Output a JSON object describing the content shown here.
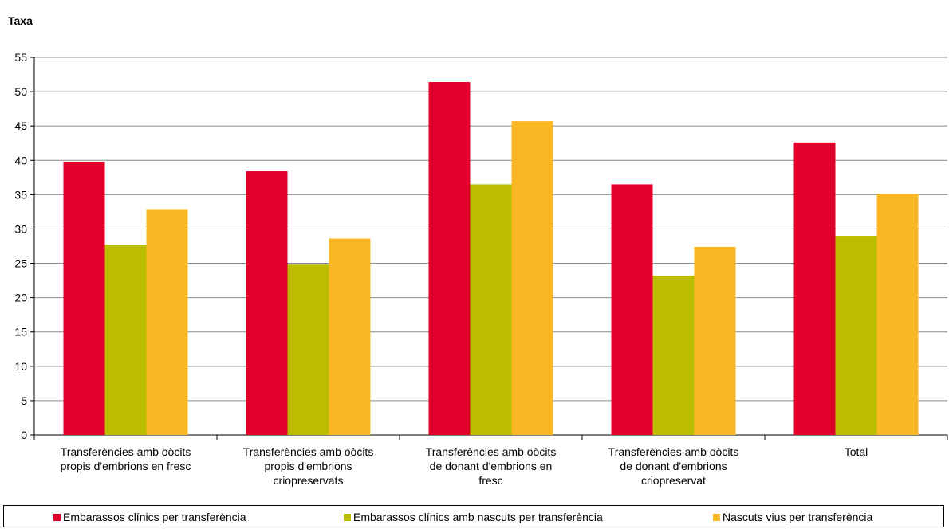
{
  "chart_data": {
    "type": "bar",
    "ylabel": "Taxa",
    "xlabel": "",
    "ylim": [
      0,
      55
    ],
    "yticks": [
      0,
      5,
      10,
      15,
      20,
      25,
      30,
      35,
      40,
      45,
      50,
      55
    ],
    "grid": "horizontal",
    "legend_position": "bottom",
    "categories": [
      [
        "Transferències amb oòcits",
        "propis d'embrions en fresc"
      ],
      [
        "Transferències amb oòcits",
        "propis d'embrions",
        "criopreservats"
      ],
      [
        "Transferències amb oòcits",
        "de donant d'embrions en",
        "fresc"
      ],
      [
        "Transferències amb oòcits",
        "de donant d'embrions",
        "criopreservat"
      ],
      [
        "Total"
      ]
    ],
    "series": [
      {
        "name": "Embarassos clínics per transferència",
        "color": "#e0002a",
        "values": [
          39.8,
          38.4,
          51.4,
          36.5,
          42.6
        ]
      },
      {
        "name": "Embarassos clínics amb nascuts per transferència",
        "color": "#bcbd00",
        "values": [
          27.7,
          24.8,
          36.5,
          23.2,
          29.0
        ]
      },
      {
        "name": "Nascuts vius per transferència",
        "color": "#f9b823",
        "values": [
          32.9,
          28.6,
          45.7,
          27.4,
          35.1
        ]
      }
    ]
  }
}
